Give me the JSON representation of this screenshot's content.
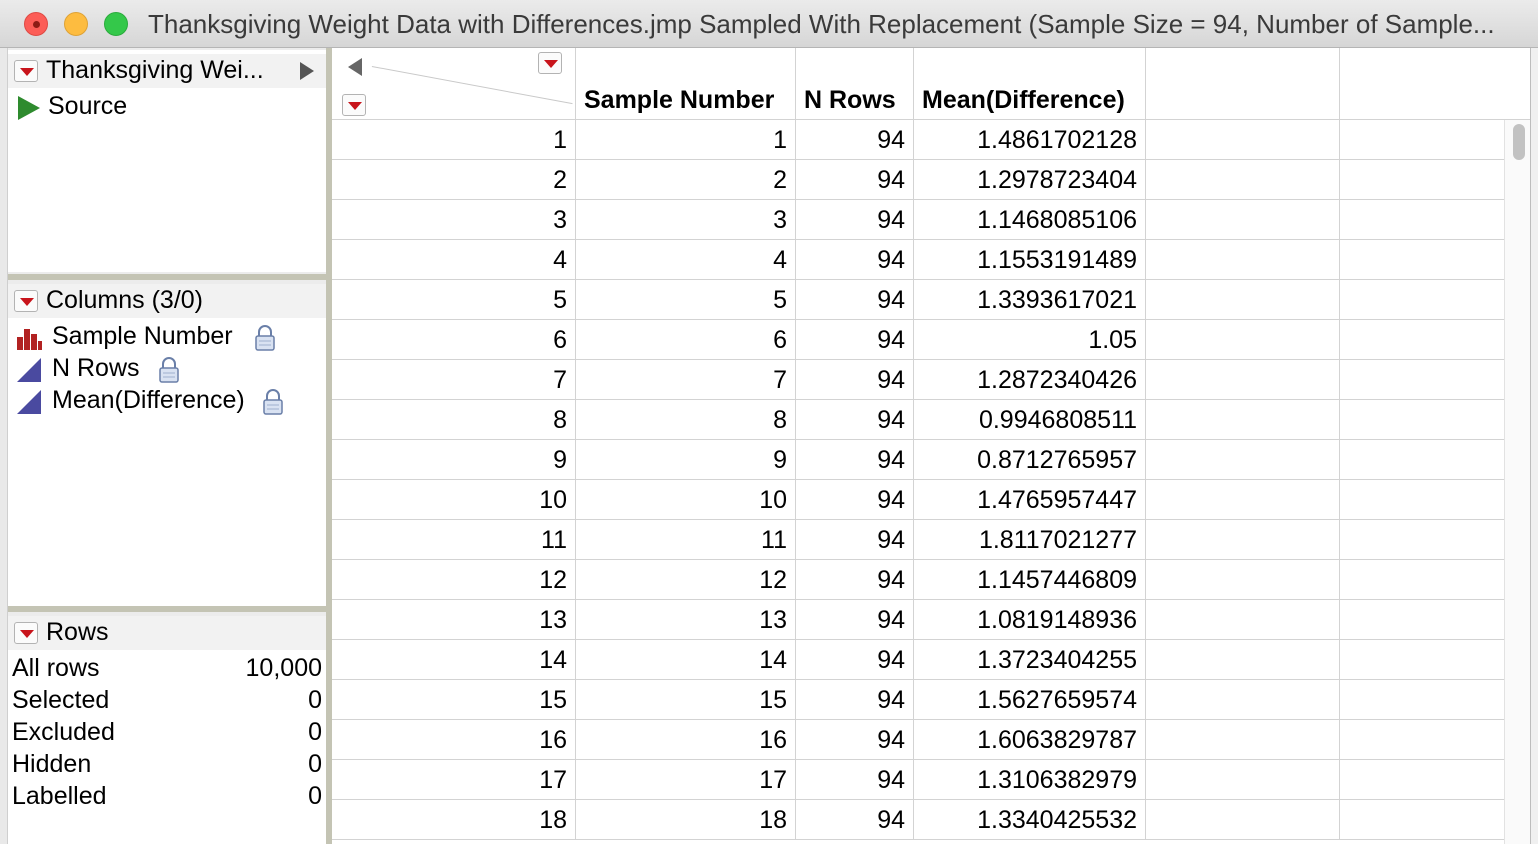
{
  "window": {
    "title": "Thanksgiving Weight Data with Differences.jmp Sampled With Replacement (Sample Size = 94, Number of Sample...",
    "colors": {
      "accent_red": "#c8141b",
      "source_green": "#2e8b2e",
      "column_blue": "#4a4aa0",
      "histogram_red": "#b22222"
    }
  },
  "table_pane": {
    "title": "Thanksgiving Wei...",
    "source_label": "Source",
    "icons": {
      "source": "play-triangle-icon",
      "expand": "expand-arrow-icon"
    }
  },
  "columns_pane": {
    "title": "Columns (3/0)",
    "columns": [
      {
        "name": "Sample Number",
        "icon": "nominal-histogram-icon",
        "locked": true
      },
      {
        "name": "N Rows",
        "icon": "continuous-triangle-icon",
        "locked": true
      },
      {
        "name": "Mean(Difference)",
        "icon": "continuous-triangle-icon",
        "locked": true
      }
    ]
  },
  "rows_pane": {
    "title": "Rows",
    "stats": [
      {
        "label": "All rows",
        "value": "10,000"
      },
      {
        "label": "Selected",
        "value": "0"
      },
      {
        "label": "Excluded",
        "value": "0"
      },
      {
        "label": "Hidden",
        "value": "0"
      },
      {
        "label": "Labelled",
        "value": "0"
      }
    ]
  },
  "grid": {
    "headers": [
      "Sample Number",
      "N Rows",
      "Mean(Difference)"
    ],
    "rows": [
      {
        "row": "1",
        "sample": "1",
        "n": "94",
        "mean": "1.4861702128"
      },
      {
        "row": "2",
        "sample": "2",
        "n": "94",
        "mean": "1.2978723404"
      },
      {
        "row": "3",
        "sample": "3",
        "n": "94",
        "mean": "1.1468085106"
      },
      {
        "row": "4",
        "sample": "4",
        "n": "94",
        "mean": "1.1553191489"
      },
      {
        "row": "5",
        "sample": "5",
        "n": "94",
        "mean": "1.3393617021"
      },
      {
        "row": "6",
        "sample": "6",
        "n": "94",
        "mean": "1.05"
      },
      {
        "row": "7",
        "sample": "7",
        "n": "94",
        "mean": "1.2872340426"
      },
      {
        "row": "8",
        "sample": "8",
        "n": "94",
        "mean": "0.9946808511"
      },
      {
        "row": "9",
        "sample": "9",
        "n": "94",
        "mean": "0.8712765957"
      },
      {
        "row": "10",
        "sample": "10",
        "n": "94",
        "mean": "1.4765957447"
      },
      {
        "row": "11",
        "sample": "11",
        "n": "94",
        "mean": "1.8117021277"
      },
      {
        "row": "12",
        "sample": "12",
        "n": "94",
        "mean": "1.1457446809"
      },
      {
        "row": "13",
        "sample": "13",
        "n": "94",
        "mean": "1.0819148936"
      },
      {
        "row": "14",
        "sample": "14",
        "n": "94",
        "mean": "1.3723404255"
      },
      {
        "row": "15",
        "sample": "15",
        "n": "94",
        "mean": "1.5627659574"
      },
      {
        "row": "16",
        "sample": "16",
        "n": "94",
        "mean": "1.6063829787"
      },
      {
        "row": "17",
        "sample": "17",
        "n": "94",
        "mean": "1.3106382979"
      },
      {
        "row": "18",
        "sample": "18",
        "n": "94",
        "mean": "1.3340425532"
      }
    ]
  }
}
